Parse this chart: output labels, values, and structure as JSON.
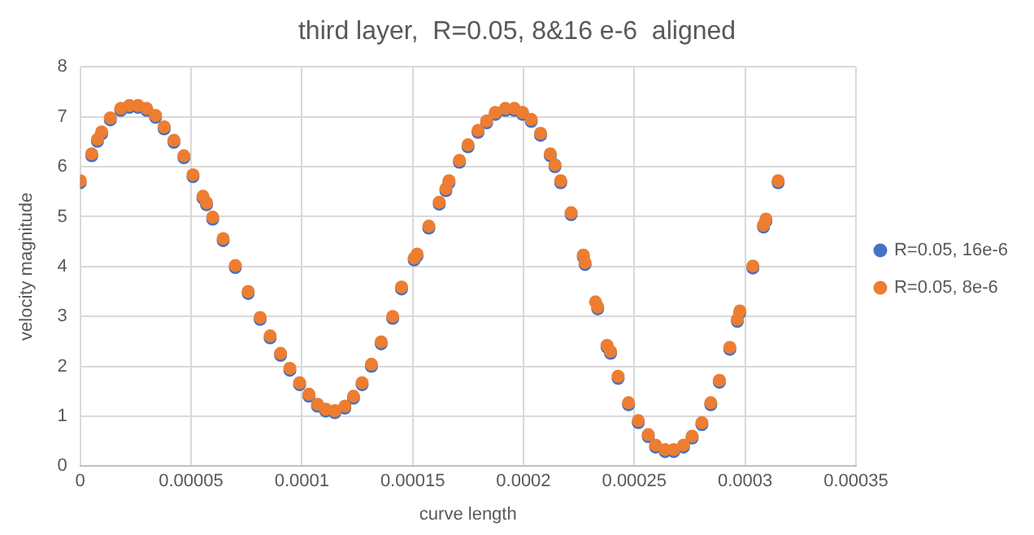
{
  "chart_data": {
    "type": "scatter",
    "title": "third layer,  R=0.05, 8&16 e-6  aligned",
    "xlabel": "curve length",
    "ylabel": "velocity magnitude",
    "xlim": [
      0,
      0.00035
    ],
    "xticks": [
      0,
      {
        "value": 5e-05,
        "label": "0.00005"
      },
      0.0001,
      0.00015,
      0.0002,
      0.00025,
      0.0003,
      0.00035
    ],
    "ylim": [
      0,
      8
    ],
    "yticks": [
      0,
      1,
      2,
      3,
      4,
      5,
      6,
      7,
      8
    ],
    "grid": true,
    "legend": "right",
    "marker": "circle",
    "series": [
      {
        "name": "R=0.05, 16e-6",
        "color": "#4472c4",
        "x": [
          0,
          5.2e-06,
          7.8e-06,
          9.7e-06,
          1.36e-05,
          1.83e-05,
          2.22e-05,
          2.61e-05,
          3e-05,
          3.4e-05,
          3.79e-05,
          4.23e-05,
          4.68e-05,
          5.09e-05,
          5.54e-05,
          5.7e-05,
          5.98e-05,
          6.45e-05,
          7e-05,
          7.58e-05,
          8.12e-05,
          8.57e-05,
          9.04e-05,
          9.46e-05,
          9.9e-05,
          0.0001032,
          0.0001071,
          0.0001108,
          0.0001149,
          0.0001194,
          0.0001233,
          0.0001272,
          0.0001314,
          0.0001358,
          0.000141,
          0.000145,
          0.0001507,
          0.000152,
          0.0001573,
          0.000162,
          0.000165,
          0.0001664,
          0.0001711,
          0.000175,
          0.0001795,
          0.0001834,
          0.0001873,
          0.0001918,
          0.0001959,
          0.0001996,
          0.0002035,
          0.0002077,
          0.0002121,
          0.0002142,
          0.0002168,
          0.0002215,
          0.000227,
          0.0002278,
          0.0002335,
          0.0002377,
          0.0002393,
          0.0002427,
          0.0002474,
          0.0002518,
          0.0002563,
          0.0002596,
          0.0002639,
          0.0002678,
          0.0002722,
          0.0002761,
          0.0002805,
          0.0002845,
          0.0002884,
          0.0002931,
          0.0002965,
          0.0002976,
          0.0003035,
          0.0003083,
          0.0003094,
          0.0003149
        ],
        "values": [
          5.68,
          6.22,
          6.51,
          6.66,
          6.94,
          7.13,
          7.19,
          7.19,
          7.13,
          6.99,
          6.76,
          6.49,
          6.18,
          5.8,
          5.37,
          5.24,
          4.95,
          4.52,
          3.98,
          3.46,
          2.94,
          2.57,
          2.22,
          1.92,
          1.63,
          1.4,
          1.2,
          1.1,
          1.07,
          1.16,
          1.36,
          1.63,
          2.0,
          2.45,
          2.96,
          3.55,
          4.13,
          4.21,
          4.77,
          5.25,
          5.52,
          5.68,
          6.09,
          6.4,
          6.69,
          6.88,
          7.05,
          7.13,
          7.13,
          7.05,
          6.91,
          6.63,
          6.22,
          6.0,
          5.68,
          5.04,
          4.19,
          4.04,
          3.15,
          2.38,
          2.26,
          1.76,
          1.23,
          0.87,
          0.59,
          0.38,
          0.29,
          0.29,
          0.38,
          0.56,
          0.83,
          1.23,
          1.68,
          2.34,
          2.9,
          3.07,
          3.97,
          4.79,
          4.91,
          5.68
        ]
      },
      {
        "name": "R=0.05, 8e-6",
        "color": "#ed7d31",
        "x": [
          0,
          5.2e-06,
          7.8e-06,
          9.7e-06,
          1.36e-05,
          1.83e-05,
          2.22e-05,
          2.61e-05,
          3e-05,
          3.4e-05,
          3.79e-05,
          4.23e-05,
          4.68e-05,
          5.09e-05,
          5.54e-05,
          5.7e-05,
          5.98e-05,
          6.45e-05,
          7e-05,
          7.58e-05,
          8.12e-05,
          8.57e-05,
          9.04e-05,
          9.46e-05,
          9.9e-05,
          0.0001032,
          0.0001071,
          0.0001108,
          0.0001149,
          0.0001194,
          0.0001233,
          0.0001272,
          0.0001314,
          0.0001358,
          0.000141,
          0.000145,
          0.0001507,
          0.000152,
          0.0001573,
          0.000162,
          0.000165,
          0.0001664,
          0.0001711,
          0.000175,
          0.0001795,
          0.0001834,
          0.0001873,
          0.0001918,
          0.0001959,
          0.0001996,
          0.0002035,
          0.0002077,
          0.0002121,
          0.0002142,
          0.0002168,
          0.0002215,
          0.000227,
          0.0002278,
          0.0002325,
          0.0002335,
          0.0002377,
          0.0002393,
          0.0002427,
          0.0002474,
          0.0002518,
          0.0002563,
          0.0002596,
          0.0002639,
          0.0002678,
          0.0002722,
          0.0002761,
          0.0002805,
          0.0002845,
          0.0002884,
          0.0002931,
          0.0002965,
          0.0002976,
          0.0003035,
          0.0003083,
          0.0003094,
          0.0003149
        ],
        "values": [
          5.72,
          6.26,
          6.55,
          6.7,
          6.98,
          7.17,
          7.23,
          7.23,
          7.17,
          7.03,
          6.8,
          6.53,
          6.22,
          5.84,
          5.41,
          5.28,
          4.99,
          4.56,
          4.02,
          3.5,
          2.98,
          2.61,
          2.26,
          1.96,
          1.67,
          1.44,
          1.24,
          1.14,
          1.11,
          1.2,
          1.4,
          1.67,
          2.04,
          2.49,
          3.0,
          3.59,
          4.17,
          4.25,
          4.81,
          5.29,
          5.56,
          5.72,
          6.13,
          6.44,
          6.73,
          6.92,
          7.09,
          7.17,
          7.17,
          7.09,
          6.95,
          6.67,
          6.26,
          6.04,
          5.72,
          5.08,
          4.23,
          4.08,
          3.29,
          3.19,
          2.42,
          2.3,
          1.8,
          1.27,
          0.91,
          0.63,
          0.42,
          0.33,
          0.33,
          0.42,
          0.6,
          0.87,
          1.27,
          1.72,
          2.38,
          2.94,
          3.11,
          4.01,
          4.83,
          4.95,
          5.72
        ]
      }
    ]
  }
}
